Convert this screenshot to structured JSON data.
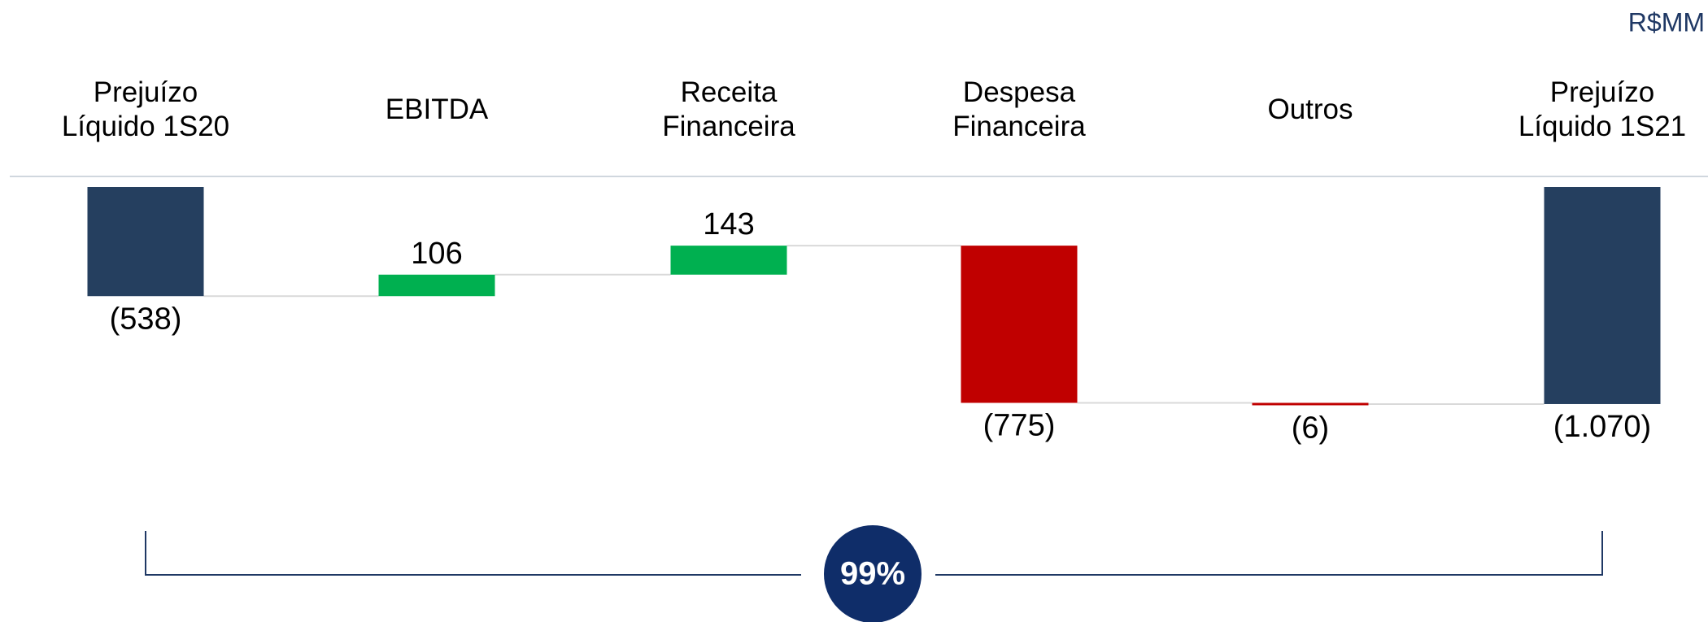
{
  "chart_data": {
    "type": "waterfall",
    "unit_label": "R$MM",
    "categories": [
      "Prejuízo Líquido 1S20",
      "EBITDA",
      "Receita Financeira",
      "Despesa Financeira",
      "Outros",
      "Prejuízo Líquido 1S21"
    ],
    "values": [
      -538,
      106,
      143,
      -775,
      -6,
      -1070
    ],
    "value_labels": [
      "(538)",
      "106",
      "143",
      "(775)",
      "(6)",
      "(1.070)"
    ],
    "colors": {
      "total": "#253f5f",
      "increase": "#00b050",
      "decrease": "#c00000"
    },
    "annotation": "99%"
  }
}
